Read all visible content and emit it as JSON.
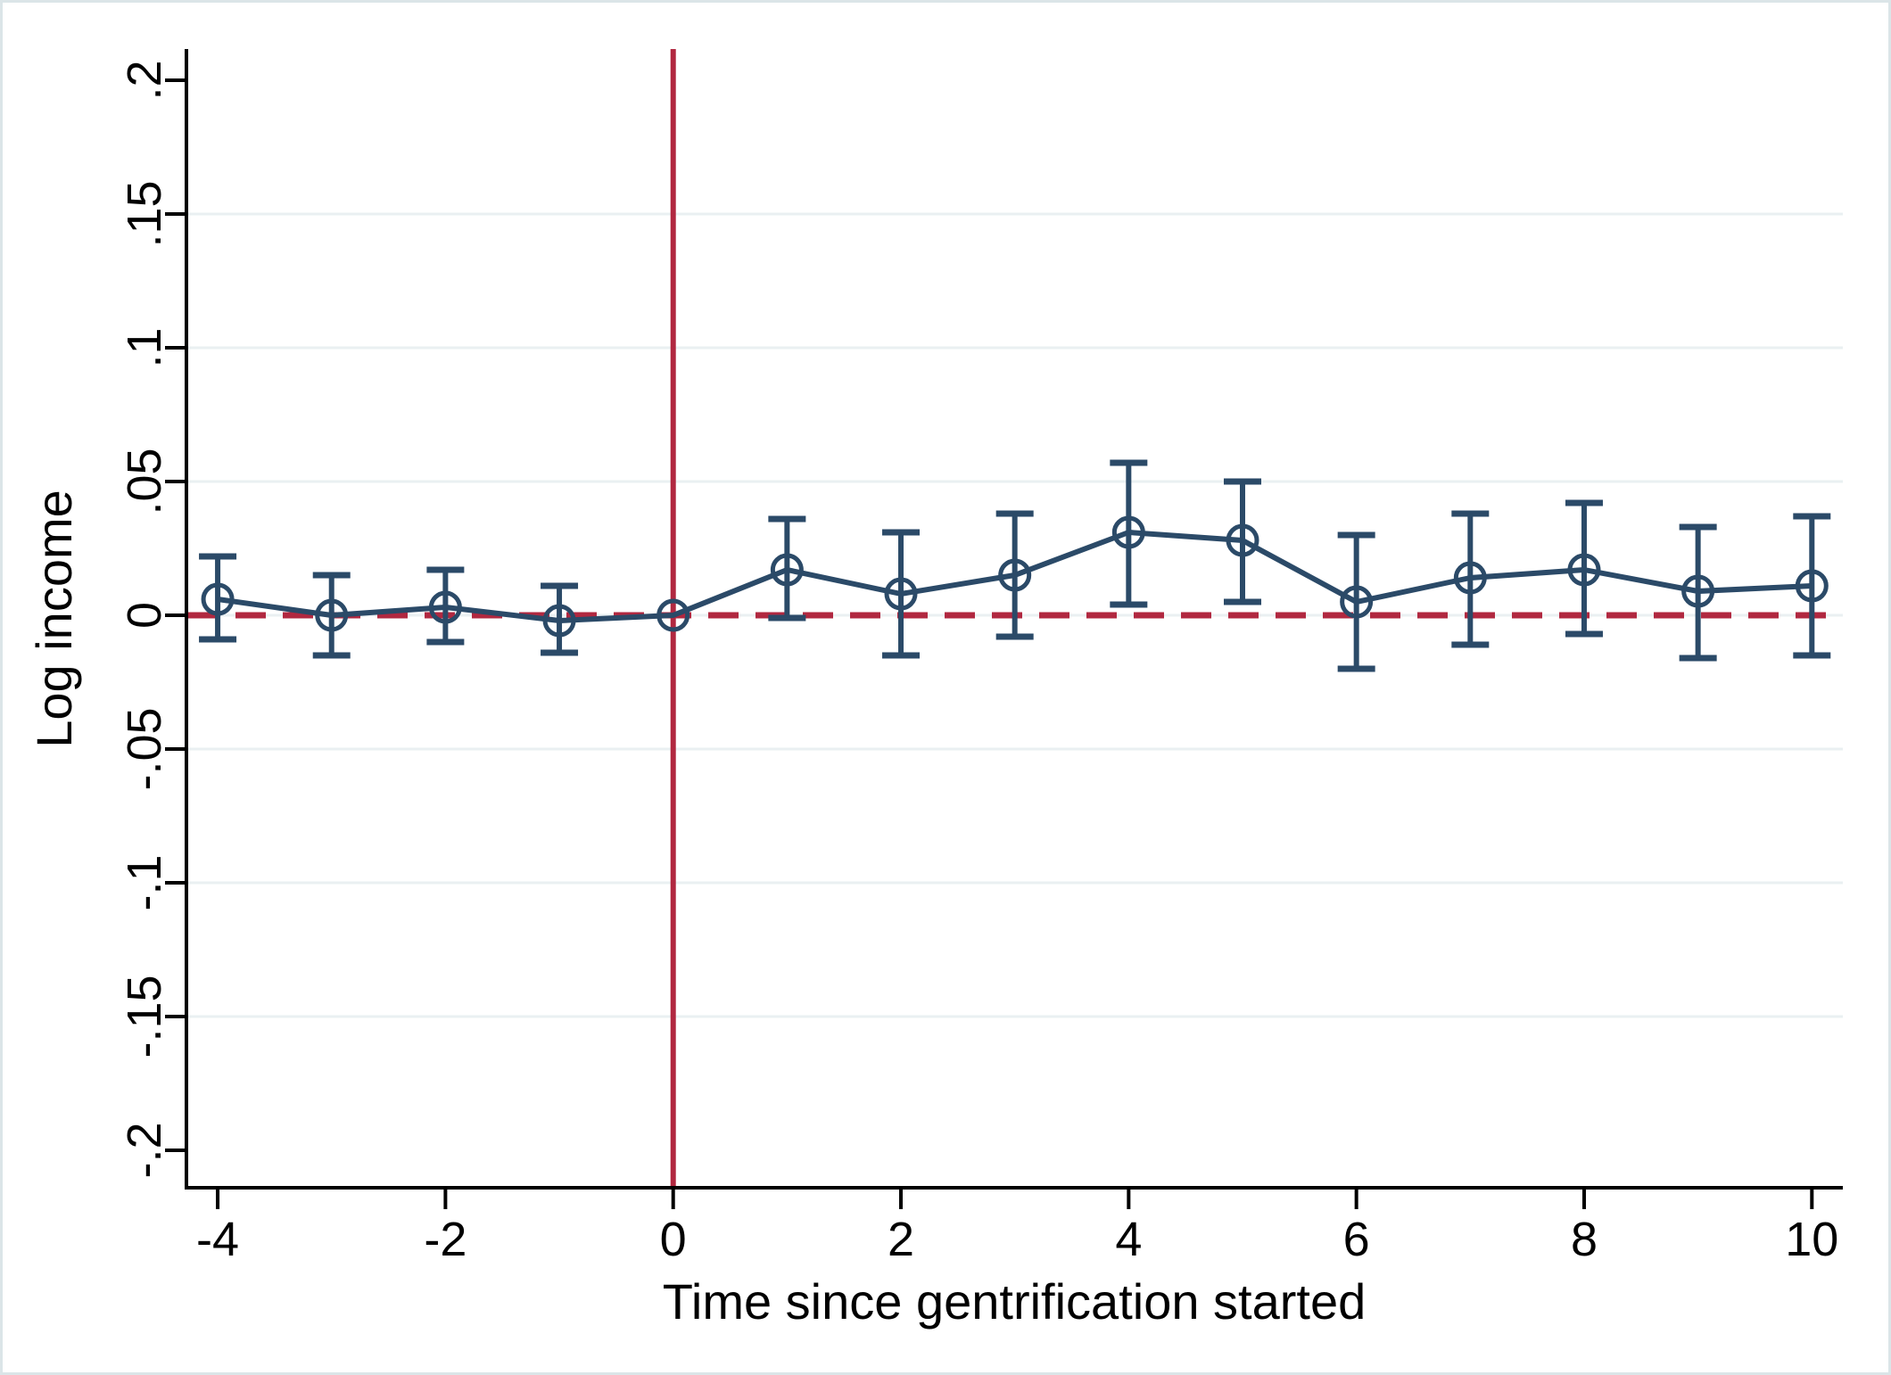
{
  "figure": {
    "description": "Event-study plot of log income around gentrification start",
    "background": "#ffffff"
  },
  "chart_data": {
    "type": "line",
    "subtype": "event-study-errorbar",
    "title": "",
    "xlabel": "Time since gentrification started",
    "ylabel": "Log income",
    "x": [
      -4,
      -3,
      -2,
      -1,
      0,
      1,
      2,
      3,
      4,
      5,
      6,
      7,
      8,
      9,
      10
    ],
    "series": [
      {
        "name": "Log income coefficient",
        "estimates": [
          0.006,
          0.0,
          0.003,
          -0.002,
          0.0,
          0.017,
          0.008,
          0.015,
          0.031,
          0.028,
          0.005,
          0.014,
          0.017,
          0.009,
          0.011
        ],
        "ci_lower": [
          -0.009,
          -0.015,
          -0.01,
          -0.014,
          null,
          -0.001,
          -0.015,
          -0.008,
          0.004,
          0.005,
          -0.02,
          -0.011,
          -0.007,
          -0.016,
          -0.015
        ],
        "ci_upper": [
          0.022,
          0.015,
          0.017,
          0.011,
          null,
          0.036,
          0.031,
          0.038,
          0.057,
          0.05,
          0.03,
          0.038,
          0.042,
          0.033,
          0.037
        ]
      }
    ],
    "xticks": [
      -4,
      -2,
      0,
      2,
      4,
      6,
      8,
      10
    ],
    "xtick_labels": [
      "-4",
      "-2",
      "0",
      "2",
      "4",
      "6",
      "8",
      "10"
    ],
    "yticks": [
      0.2,
      0.15,
      0.1,
      0.05,
      0,
      -0.05,
      -0.1,
      -0.15,
      -0.2
    ],
    "ytick_labels": [
      ".2",
      ".15",
      ".1",
      ".05",
      "0",
      "-.05",
      "-.1",
      "-.15",
      "-.2"
    ],
    "grid_yticks": [
      0.15,
      0.1,
      0.05,
      0,
      -0.05,
      -0.1,
      -0.15
    ],
    "xlim": [
      -4.27,
      10.27
    ],
    "ylim": [
      -0.213,
      0.213
    ],
    "grid": true,
    "legend_position": "none",
    "reference_lines": {
      "vline_x": 0,
      "hline_y": 0,
      "hline_style": "dashed"
    },
    "colors": {
      "series": "#2b4a68",
      "reference": "#b12840",
      "gridline": "#eaf0f2",
      "axis": "#000000",
      "frame": "#dbe5e8",
      "background": "#ffffff"
    }
  }
}
